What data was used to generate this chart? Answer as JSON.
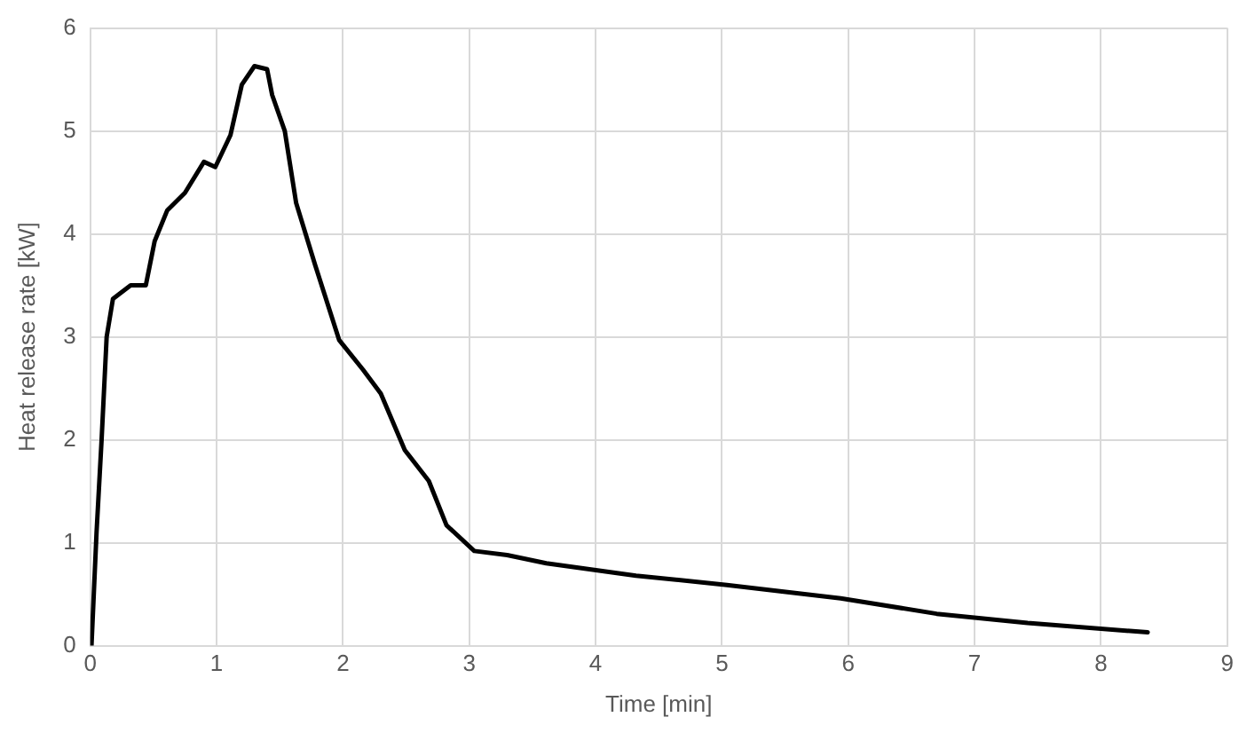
{
  "chart_data": {
    "type": "line",
    "xlabel": "Time [min]",
    "ylabel": "Heat release rate [kW]",
    "xlim": [
      0,
      9
    ],
    "xticks": [
      0,
      1,
      2,
      3,
      4,
      5,
      6,
      7,
      8,
      9
    ],
    "ylim": [
      0,
      6
    ],
    "yticks": [
      0,
      1,
      2,
      3,
      4,
      5,
      6
    ],
    "grid": true,
    "legend": false,
    "marker": "none",
    "line_style": "solid",
    "series": [
      {
        "color": "#000000",
        "x": [
          0.01,
          0.05,
          0.09,
          0.13,
          0.18,
          0.32,
          0.44,
          0.51,
          0.61,
          0.75,
          0.9,
          0.99,
          1.11,
          1.2,
          1.3,
          1.4,
          1.44,
          1.54,
          1.63,
          1.78,
          1.97,
          2.16,
          2.3,
          2.49,
          2.68,
          2.82,
          3.04,
          3.3,
          3.61,
          4.32,
          5.04,
          5.94,
          6.7,
          7.42,
          8.37
        ],
        "values": [
          0,
          1.1,
          2.0,
          3.0,
          3.37,
          3.5,
          3.5,
          3.93,
          4.23,
          4.4,
          4.7,
          4.65,
          4.96,
          5.45,
          5.63,
          5.6,
          5.35,
          5.0,
          4.3,
          3.7,
          2.97,
          2.68,
          2.45,
          1.9,
          1.6,
          1.17,
          0.92,
          0.88,
          0.8,
          0.68,
          0.59,
          0.46,
          0.31,
          0.22,
          0.13
        ]
      }
    ]
  }
}
